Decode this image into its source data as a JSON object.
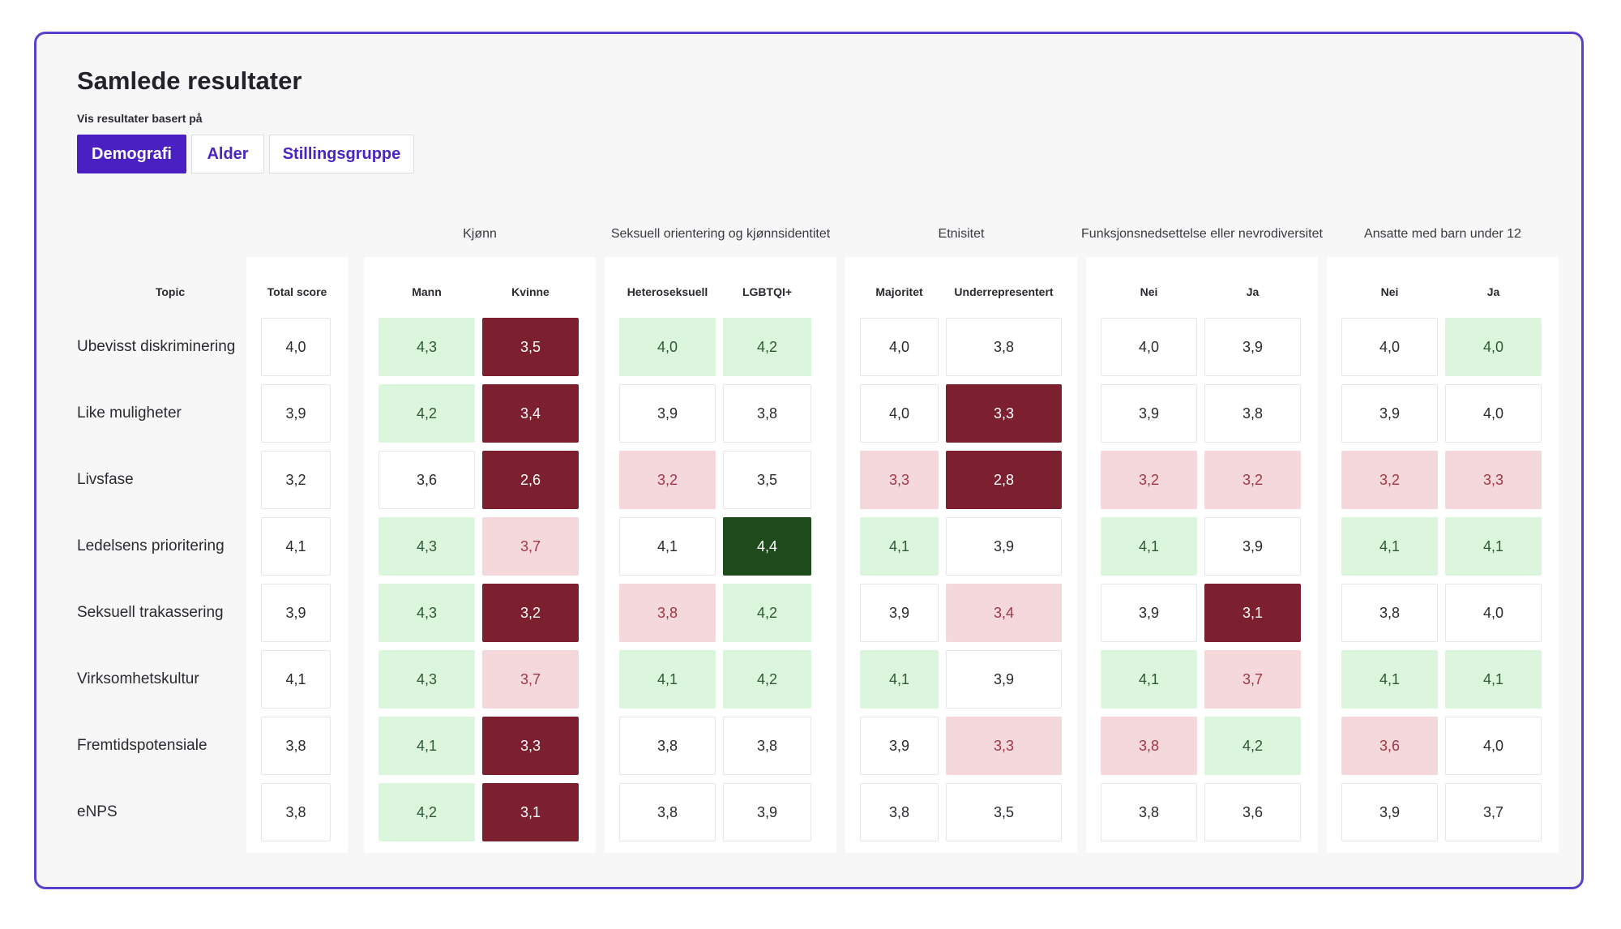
{
  "page": {
    "title": "Samlede resultater",
    "filter_label": "Vis resultater basert på",
    "tabs": [
      {
        "label": "Demografi",
        "active": true
      },
      {
        "label": "Alder",
        "active": false
      },
      {
        "label": "Stillingsgruppe",
        "active": false
      }
    ]
  },
  "colors": {
    "accent": "#4a20c2",
    "border": "#5b3fd1",
    "good": "#dcf6de",
    "very_good": "#1f4a1c",
    "bad": "#f4d8dc",
    "very_bad": "#7c1f2e"
  },
  "table": {
    "topic_header": "Topic",
    "total_header": "Total score",
    "groups": [
      {
        "title": "Kjønn",
        "columns": [
          "Mann",
          "Kvinne"
        ]
      },
      {
        "title": "Seksuell orientering og kjønnsidentitet",
        "columns": [
          "Heteroseksuell",
          "LGBTQI+"
        ]
      },
      {
        "title": "Etnisitet",
        "columns": [
          "Majoritet",
          "Underrepresentert"
        ]
      },
      {
        "title": "Funksjonsnedsettelse eller nevrodiversitet",
        "columns": [
          "Nei",
          "Ja"
        ]
      },
      {
        "title": "Ansatte med barn under 12",
        "columns": [
          "Nei",
          "Ja"
        ]
      }
    ],
    "rows": [
      {
        "topic": "Ubevisst diskriminering",
        "total": "4,0",
        "cells": [
          {
            "value": "4,3",
            "level": "good"
          },
          {
            "value": "3,5",
            "level": "verybad"
          },
          {
            "value": "4,0",
            "level": "good"
          },
          {
            "value": "4,2",
            "level": "good"
          },
          {
            "value": "4,0",
            "level": "neutral"
          },
          {
            "value": "3,8",
            "level": "neutral"
          },
          {
            "value": "4,0",
            "level": "neutral"
          },
          {
            "value": "3,9",
            "level": "neutral"
          },
          {
            "value": "4,0",
            "level": "neutral"
          },
          {
            "value": "4,0",
            "level": "good"
          }
        ]
      },
      {
        "topic": "Like muligheter",
        "total": "3,9",
        "cells": [
          {
            "value": "4,2",
            "level": "good"
          },
          {
            "value": "3,4",
            "level": "verybad"
          },
          {
            "value": "3,9",
            "level": "neutral"
          },
          {
            "value": "3,8",
            "level": "neutral"
          },
          {
            "value": "4,0",
            "level": "neutral"
          },
          {
            "value": "3,3",
            "level": "verybad"
          },
          {
            "value": "3,9",
            "level": "neutral"
          },
          {
            "value": "3,8",
            "level": "neutral"
          },
          {
            "value": "3,9",
            "level": "neutral"
          },
          {
            "value": "4,0",
            "level": "neutral"
          }
        ]
      },
      {
        "topic": "Livsfase",
        "total": "3,2",
        "cells": [
          {
            "value": "3,6",
            "level": "neutral"
          },
          {
            "value": "2,6",
            "level": "verybad"
          },
          {
            "value": "3,2",
            "level": "bad"
          },
          {
            "value": "3,5",
            "level": "neutral"
          },
          {
            "value": "3,3",
            "level": "bad"
          },
          {
            "value": "2,8",
            "level": "verybad"
          },
          {
            "value": "3,2",
            "level": "bad"
          },
          {
            "value": "3,2",
            "level": "bad"
          },
          {
            "value": "3,2",
            "level": "bad"
          },
          {
            "value": "3,3",
            "level": "bad"
          }
        ]
      },
      {
        "topic": "Ledelsens prioritering",
        "total": "4,1",
        "cells": [
          {
            "value": "4,3",
            "level": "good"
          },
          {
            "value": "3,7",
            "level": "bad"
          },
          {
            "value": "4,1",
            "level": "neutral"
          },
          {
            "value": "4,4",
            "level": "verygood"
          },
          {
            "value": "4,1",
            "level": "good"
          },
          {
            "value": "3,9",
            "level": "neutral"
          },
          {
            "value": "4,1",
            "level": "good"
          },
          {
            "value": "3,9",
            "level": "neutral"
          },
          {
            "value": "4,1",
            "level": "good"
          },
          {
            "value": "4,1",
            "level": "good"
          }
        ]
      },
      {
        "topic": "Seksuell trakassering",
        "total": "3,9",
        "cells": [
          {
            "value": "4,3",
            "level": "good"
          },
          {
            "value": "3,2",
            "level": "verybad"
          },
          {
            "value": "3,8",
            "level": "bad"
          },
          {
            "value": "4,2",
            "level": "good"
          },
          {
            "value": "3,9",
            "level": "neutral"
          },
          {
            "value": "3,4",
            "level": "bad"
          },
          {
            "value": "3,9",
            "level": "neutral"
          },
          {
            "value": "3,1",
            "level": "verybad"
          },
          {
            "value": "3,8",
            "level": "neutral"
          },
          {
            "value": "4,0",
            "level": "neutral"
          }
        ]
      },
      {
        "topic": "Virksomhetskultur",
        "total": "4,1",
        "cells": [
          {
            "value": "4,3",
            "level": "good"
          },
          {
            "value": "3,7",
            "level": "bad"
          },
          {
            "value": "4,1",
            "level": "good"
          },
          {
            "value": "4,2",
            "level": "good"
          },
          {
            "value": "4,1",
            "level": "good"
          },
          {
            "value": "3,9",
            "level": "neutral"
          },
          {
            "value": "4,1",
            "level": "good"
          },
          {
            "value": "3,7",
            "level": "bad"
          },
          {
            "value": "4,1",
            "level": "good"
          },
          {
            "value": "4,1",
            "level": "good"
          }
        ]
      },
      {
        "topic": "Fremtidspotensiale",
        "total": "3,8",
        "cells": [
          {
            "value": "4,1",
            "level": "good"
          },
          {
            "value": "3,3",
            "level": "verybad"
          },
          {
            "value": "3,8",
            "level": "neutral"
          },
          {
            "value": "3,8",
            "level": "neutral"
          },
          {
            "value": "3,9",
            "level": "neutral"
          },
          {
            "value": "3,3",
            "level": "bad"
          },
          {
            "value": "3,8",
            "level": "bad"
          },
          {
            "value": "4,2",
            "level": "good"
          },
          {
            "value": "3,6",
            "level": "bad"
          },
          {
            "value": "4,0",
            "level": "neutral"
          }
        ]
      },
      {
        "topic": "eNPS",
        "total": "3,8",
        "cells": [
          {
            "value": "4,2",
            "level": "good"
          },
          {
            "value": "3,1",
            "level": "verybad"
          },
          {
            "value": "3,8",
            "level": "neutral"
          },
          {
            "value": "3,9",
            "level": "neutral"
          },
          {
            "value": "3,8",
            "level": "neutral"
          },
          {
            "value": "3,5",
            "level": "neutral"
          },
          {
            "value": "3,8",
            "level": "neutral"
          },
          {
            "value": "3,6",
            "level": "neutral"
          },
          {
            "value": "3,9",
            "level": "neutral"
          },
          {
            "value": "3,7",
            "level": "neutral"
          }
        ]
      }
    ]
  }
}
